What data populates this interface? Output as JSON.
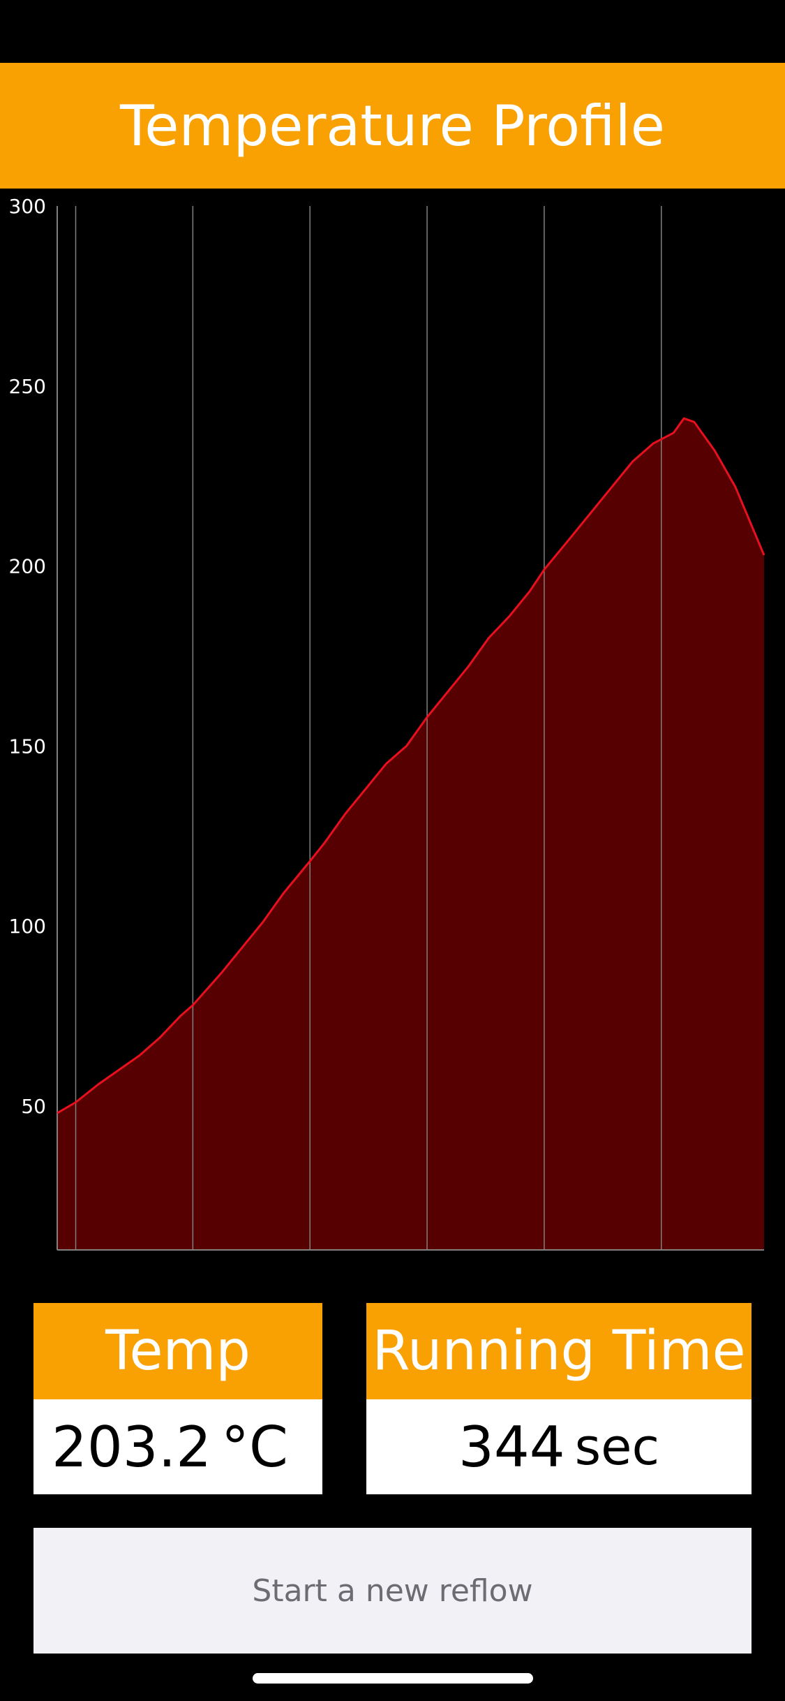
{
  "colors": {
    "accent": "#F9A003",
    "background": "#000000",
    "line": "#E8101E",
    "fill": "#560002",
    "grid": "#808080",
    "button_bg": "#F1F1F6",
    "button_text": "#6C6C72"
  },
  "header": {
    "title": "Temperature Profile"
  },
  "chart_data": {
    "type": "area",
    "title": "",
    "xlabel": "",
    "ylabel": "",
    "ylim": [
      10,
      300
    ],
    "xlim": [
      0,
      344
    ],
    "y_ticks": [
      "300",
      "250",
      "200",
      "150",
      "100",
      "50"
    ],
    "x_gridlines": [
      9,
      66,
      123,
      180,
      237,
      294
    ],
    "grid": true,
    "x": [
      0,
      9,
      20,
      30,
      40,
      50,
      60,
      66,
      80,
      90,
      100,
      110,
      123,
      130,
      140,
      150,
      160,
      170,
      180,
      190,
      200,
      210,
      220,
      230,
      237,
      250,
      260,
      270,
      280,
      290,
      300,
      305,
      310,
      320,
      330,
      344
    ],
    "y": [
      48,
      51,
      56,
      60,
      64,
      69,
      75,
      78,
      87,
      94,
      101,
      109,
      118,
      123,
      131,
      138,
      145,
      150,
      158,
      165,
      172,
      180,
      186,
      193,
      199,
      208,
      215,
      222,
      229,
      234,
      237,
      241,
      240,
      232,
      222,
      203
    ]
  },
  "temp_card": {
    "title": "Temp",
    "value": "203.2",
    "unit": "°C"
  },
  "time_card": {
    "title": "Running Time",
    "value": "344",
    "unit": "sec"
  },
  "reflow_button": {
    "label": "Start a new reflow"
  }
}
